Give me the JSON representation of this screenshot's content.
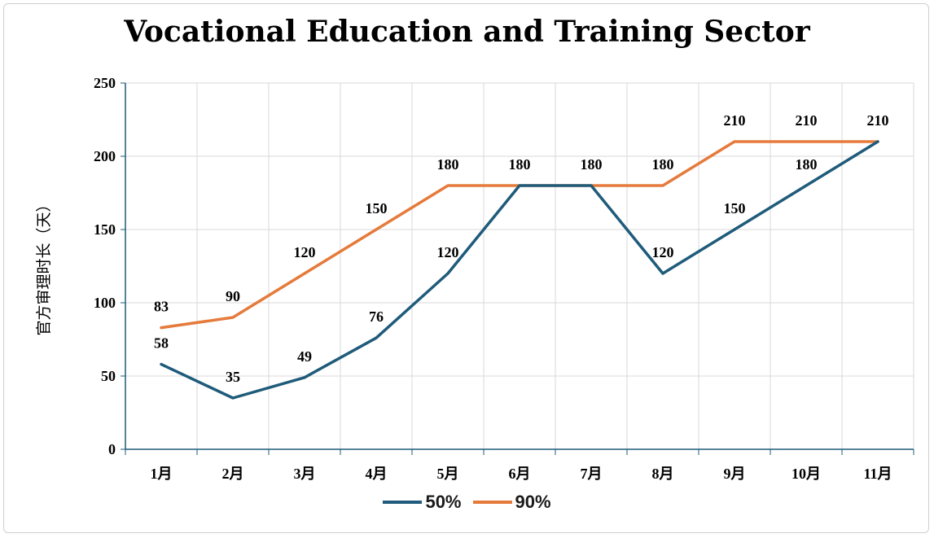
{
  "chart_data": {
    "type": "line",
    "title": "Vocational Education and Training Sector",
    "ylabel": "官方审理时长（天）",
    "xlabel": "",
    "categories": [
      "1月",
      "2月",
      "3月",
      "4月",
      "5月",
      "6月",
      "7月",
      "8月",
      "9月",
      "10月",
      "11月"
    ],
    "ylim": [
      0,
      250
    ],
    "yticks": [
      0,
      50,
      100,
      150,
      200,
      250
    ],
    "grid": true,
    "legend_position": "bottom",
    "series": [
      {
        "name": "50%",
        "color": "#1f5b7a",
        "values": [
          58,
          35,
          49,
          76,
          120,
          180,
          180,
          120,
          150,
          180,
          210
        ]
      },
      {
        "name": "90%",
        "color": "#e57a3b",
        "values": [
          83,
          90,
          120,
          150,
          180,
          180,
          180,
          180,
          210,
          210,
          210
        ]
      }
    ],
    "data_labels": [
      {
        "series": "50%",
        "category": "1月",
        "text": "58"
      },
      {
        "series": "50%",
        "category": "2月",
        "text": "35"
      },
      {
        "series": "50%",
        "category": "3月",
        "text": "49"
      },
      {
        "series": "50%",
        "category": "4月",
        "text": "76"
      },
      {
        "series": "50%",
        "category": "5月",
        "text": "120"
      },
      {
        "series": "50%",
        "category": "8月",
        "text": "120"
      },
      {
        "series": "50%",
        "category": "9月",
        "text": "150"
      },
      {
        "series": "50%",
        "category": "10月",
        "text": "180"
      },
      {
        "series": "90%",
        "category": "1月",
        "text": "83"
      },
      {
        "series": "90%",
        "category": "2月",
        "text": "90"
      },
      {
        "series": "90%",
        "category": "3月",
        "text": "120"
      },
      {
        "series": "90%",
        "category": "4月",
        "text": "150"
      },
      {
        "series": "90%",
        "category": "5月",
        "text": "180"
      },
      {
        "series": "90%",
        "category": "6月",
        "text": "180"
      },
      {
        "series": "90%",
        "category": "7月",
        "text": "180"
      },
      {
        "series": "90%",
        "category": "8月",
        "text": "180"
      },
      {
        "series": "90%",
        "category": "9月",
        "text": "210"
      },
      {
        "series": "90%",
        "category": "10月",
        "text": "210"
      },
      {
        "series": "90%",
        "category": "11月",
        "text": "210"
      }
    ]
  }
}
